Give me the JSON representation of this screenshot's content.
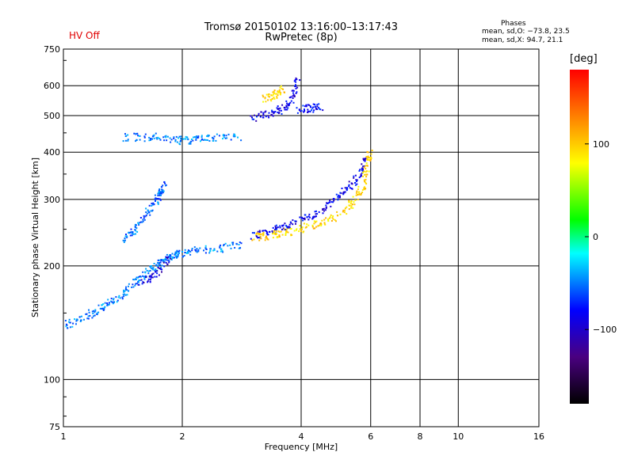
{
  "header": {
    "title_line1": "Tromsø 20150102 13:16:00–13:17:43",
    "title_line2": "RwPretec (8p)",
    "hv_status": "HV Off",
    "stats_title": "Phases",
    "stats_o": "mean, sd,O: −73.8, 23.5",
    "stats_x": "mean, sd,X:  94.7, 21.1"
  },
  "colors": {
    "hv_status": "#e00000",
    "colorbar": [
      "#000000",
      "#4a0080",
      "#0000ff",
      "#00ffff",
      "#00ff00",
      "#ffff00",
      "#ff8000",
      "#ff0000"
    ]
  },
  "chart_data": {
    "type": "scatter",
    "title": "Tromsø 20150102 13:16:00–13:17:43",
    "subtitle": "RwPretec (8p)",
    "xlabel": "Frequency [MHz]",
    "ylabel": "Stationary phase Virtual Height [km]",
    "x_scale": "log",
    "y_scale": "log",
    "xlim": [
      1,
      16
    ],
    "ylim": [
      75,
      750
    ],
    "xticks": [
      1,
      2,
      4,
      6,
      8,
      10,
      16
    ],
    "xtick_labels": [
      "1",
      "2",
      "4",
      "6",
      "8",
      "10",
      "16"
    ],
    "yticks": [
      75,
      100,
      200,
      300,
      400,
      500,
      600,
      750
    ],
    "ytick_labels": [
      "75",
      "100",
      "200",
      "300",
      "400",
      "500",
      "600",
      "750"
    ],
    "grid": true,
    "colorbar": {
      "label": "[deg]",
      "range": [
        -180,
        180
      ],
      "ticks": [
        100,
        0,
        -100
      ],
      "tick_labels": [
        "100",
        "0",
        "−100"
      ]
    },
    "traces": [
      {
        "points": [
          [
            1.0,
            140
          ],
          [
            1.1,
            145
          ],
          [
            1.2,
            152
          ],
          [
            1.3,
            160
          ],
          [
            1.4,
            168
          ],
          [
            1.5,
            180
          ],
          [
            1.6,
            190
          ],
          [
            1.7,
            200
          ],
          [
            1.8,
            210
          ],
          [
            1.9,
            215
          ],
          [
            2.0,
            218
          ],
          [
            2.2,
            221
          ],
          [
            2.5,
            224
          ],
          [
            2.8,
            230
          ]
        ],
        "phase": -70
      },
      {
        "points": [
          [
            1.4,
            235
          ],
          [
            1.5,
            250
          ],
          [
            1.6,
            270
          ],
          [
            1.7,
            295
          ],
          [
            1.75,
            315
          ],
          [
            1.8,
            330
          ]
        ],
        "phase": -75
      },
      {
        "points": [
          [
            1.4,
            440
          ],
          [
            1.6,
            440
          ],
          [
            1.8,
            440
          ],
          [
            2.0,
            430
          ],
          [
            2.2,
            435
          ],
          [
            2.4,
            438
          ],
          [
            2.8,
            440
          ]
        ],
        "phase": -70
      },
      {
        "points": [
          [
            1.55,
            180
          ],
          [
            1.7,
            190
          ],
          [
            1.85,
            210
          ]
        ],
        "phase": -110
      },
      {
        "points": [
          [
            3.0,
            240
          ],
          [
            3.3,
            248
          ],
          [
            3.6,
            255
          ],
          [
            4.0,
            265
          ],
          [
            4.4,
            278
          ],
          [
            4.8,
            300
          ],
          [
            5.2,
            320
          ],
          [
            5.6,
            350
          ],
          [
            5.8,
            385
          ]
        ],
        "phase": -105
      },
      {
        "points": [
          [
            3.0,
            238
          ],
          [
            3.3,
            242
          ],
          [
            3.6,
            245
          ],
          [
            4.0,
            252
          ],
          [
            4.5,
            262
          ],
          [
            5.0,
            275
          ],
          [
            5.4,
            295
          ],
          [
            5.7,
            325
          ],
          [
            5.85,
            370
          ],
          [
            5.95,
            400
          ]
        ],
        "phase": 95
      },
      {
        "points": [
          [
            3.0,
            495
          ],
          [
            3.3,
            505
          ],
          [
            3.6,
            525
          ],
          [
            3.8,
            560
          ],
          [
            3.9,
            620
          ]
        ],
        "phase": -105
      },
      {
        "points": [
          [
            3.2,
            555
          ],
          [
            3.4,
            570
          ],
          [
            3.6,
            590
          ]
        ],
        "phase": 95
      },
      {
        "points": [
          [
            3.9,
            520
          ],
          [
            4.2,
            525
          ],
          [
            4.5,
            530
          ]
        ],
        "phase": -100
      }
    ]
  }
}
